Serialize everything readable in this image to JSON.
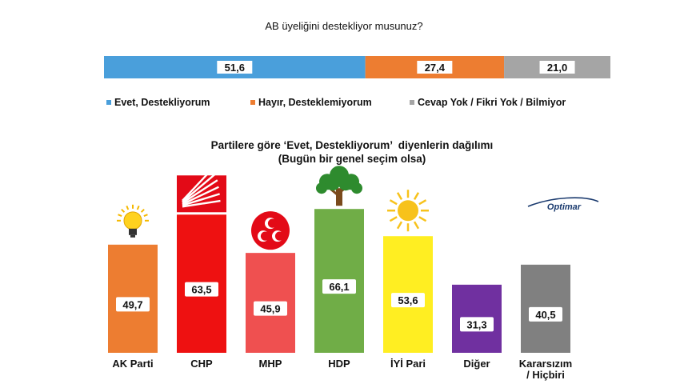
{
  "chart_data": [
    {
      "type": "bar",
      "orientation": "horizontal-stacked",
      "title": "AB üyeliğini destekliyor musunuz?",
      "series": [
        {
          "name": "Evet, Destekliyorum",
          "values": [
            51.6
          ],
          "color": "#4a9fdb"
        },
        {
          "name": "Hayır, Desteklemiyorum",
          "values": [
            27.4
          ],
          "color": "#ed7d31"
        },
        {
          "name": "Cevap Yok / Fikri Yok / Bilmiyor",
          "values": [
            21.0
          ],
          "color": "#a5a5a5"
        }
      ],
      "data_labels": [
        "51,6",
        "27,4",
        "21,0"
      ],
      "legend_position": "bottom",
      "grid": false
    },
    {
      "type": "bar",
      "title": "Partilere göre ‘Evet, Destekliyorum’  diyenlerin dağılımı",
      "subtitle": "(Bugün bir genel seçim olsa)",
      "categories": [
        "AK Parti",
        "CHP",
        "MHP",
        "HDP",
        "İYİ Pari",
        "Diğer",
        "Kararsızım / Hiçbiri"
      ],
      "category_lines": [
        [
          "AK Parti"
        ],
        [
          "CHP"
        ],
        [
          "MHP"
        ],
        [
          "HDP"
        ],
        [
          "İYİ Pari"
        ],
        [
          "Diğer"
        ],
        [
          "Kararsızım",
          "/ Hiçbiri"
        ]
      ],
      "values": [
        49.7,
        63.5,
        45.9,
        66.1,
        53.6,
        31.3,
        40.5
      ],
      "data_labels": [
        "49,7",
        "63,5",
        "45,9",
        "66,1",
        "53,6",
        "31,3",
        "40,5"
      ],
      "colors": [
        "#ed7d31",
        "#ee1111",
        "#ef5050",
        "#70ad47",
        "#ffee22",
        "#7030a0",
        "#808080"
      ],
      "ylim": [
        0,
        100
      ],
      "grid": false
    }
  ],
  "logos": [
    {
      "party": "AK Parti",
      "icon": "lightbulb-icon"
    },
    {
      "party": "CHP",
      "icon": "six-arrows-icon"
    },
    {
      "party": "MHP",
      "icon": "crescents-icon"
    },
    {
      "party": "HDP",
      "icon": "tree-icon"
    },
    {
      "party": "İYİ Pari",
      "icon": "sun-icon"
    }
  ],
  "brand": {
    "name": "Optimar",
    "color": "#1a3a6e"
  }
}
